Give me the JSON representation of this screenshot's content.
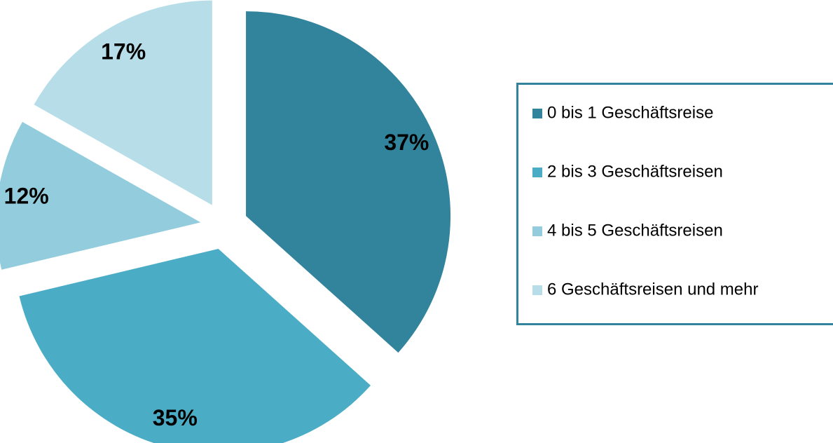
{
  "chart_data": {
    "type": "pie",
    "categories": [
      "0 bis 1 Geschäftsreise",
      "2 bis 3 Geschäftsreisen",
      "4 bis 5 Geschäftsreisen",
      "6 Geschäftsreisen und mehr"
    ],
    "values": [
      37,
      35,
      12,
      17
    ],
    "value_labels": [
      "37%",
      "35%",
      "12%",
      "17%"
    ],
    "colors": [
      "#31849b",
      "#4bacc6",
      "#93cddd",
      "#b7dee8"
    ],
    "legend": "right"
  }
}
